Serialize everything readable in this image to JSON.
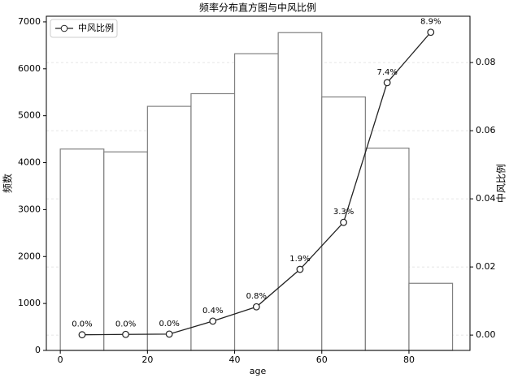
{
  "chart_data": {
    "type": "histogram",
    "title": "频率分布直方图与中风比例",
    "xlabel": "age",
    "ylabel": "频数",
    "y2label": "中风比例",
    "bins": [
      0,
      10,
      20,
      30,
      40,
      50,
      60,
      70,
      80,
      90
    ],
    "values": [
      4290,
      4230,
      5200,
      5470,
      6320,
      6770,
      5400,
      4310,
      1430
    ],
    "bar_color": "#ffffff",
    "edge_color": "#808080",
    "series": [
      {
        "name": "中风比例",
        "color": "#222222",
        "axis": "y2",
        "x": [
          5,
          15,
          25,
          35,
          45,
          55,
          65,
          75,
          85
        ],
        "values": [
          0.0001,
          0.0002,
          0.0003,
          0.0041,
          0.0083,
          0.0193,
          0.0331,
          0.0741,
          0.0889
        ],
        "value_labels": [
          "0.0%",
          "0.0%",
          "0.0%",
          "0.4%",
          "0.8%",
          "1.9%",
          "3.3%",
          "7.4%",
          "8.9%"
        ]
      }
    ],
    "xlim": [
      -3.2,
      94
    ],
    "xticks": [
      0,
      20,
      40,
      60,
      80
    ],
    "ylim": [
      0,
      7120
    ],
    "yticks": [
      0,
      1000,
      2000,
      3000,
      4000,
      5000,
      6000,
      7000
    ],
    "y2lim": [
      -0.0045,
      0.0936
    ],
    "y2ticks": [
      {
        "value": 0,
        "label": "0.00"
      },
      {
        "value": 0.02,
        "label": "0.02"
      },
      {
        "value": 0.04,
        "label": "0.04"
      },
      {
        "value": 0.06,
        "label": "0.06"
      },
      {
        "value": 0.08,
        "label": "0.08"
      }
    ],
    "grid": true,
    "legend": "upper left"
  }
}
